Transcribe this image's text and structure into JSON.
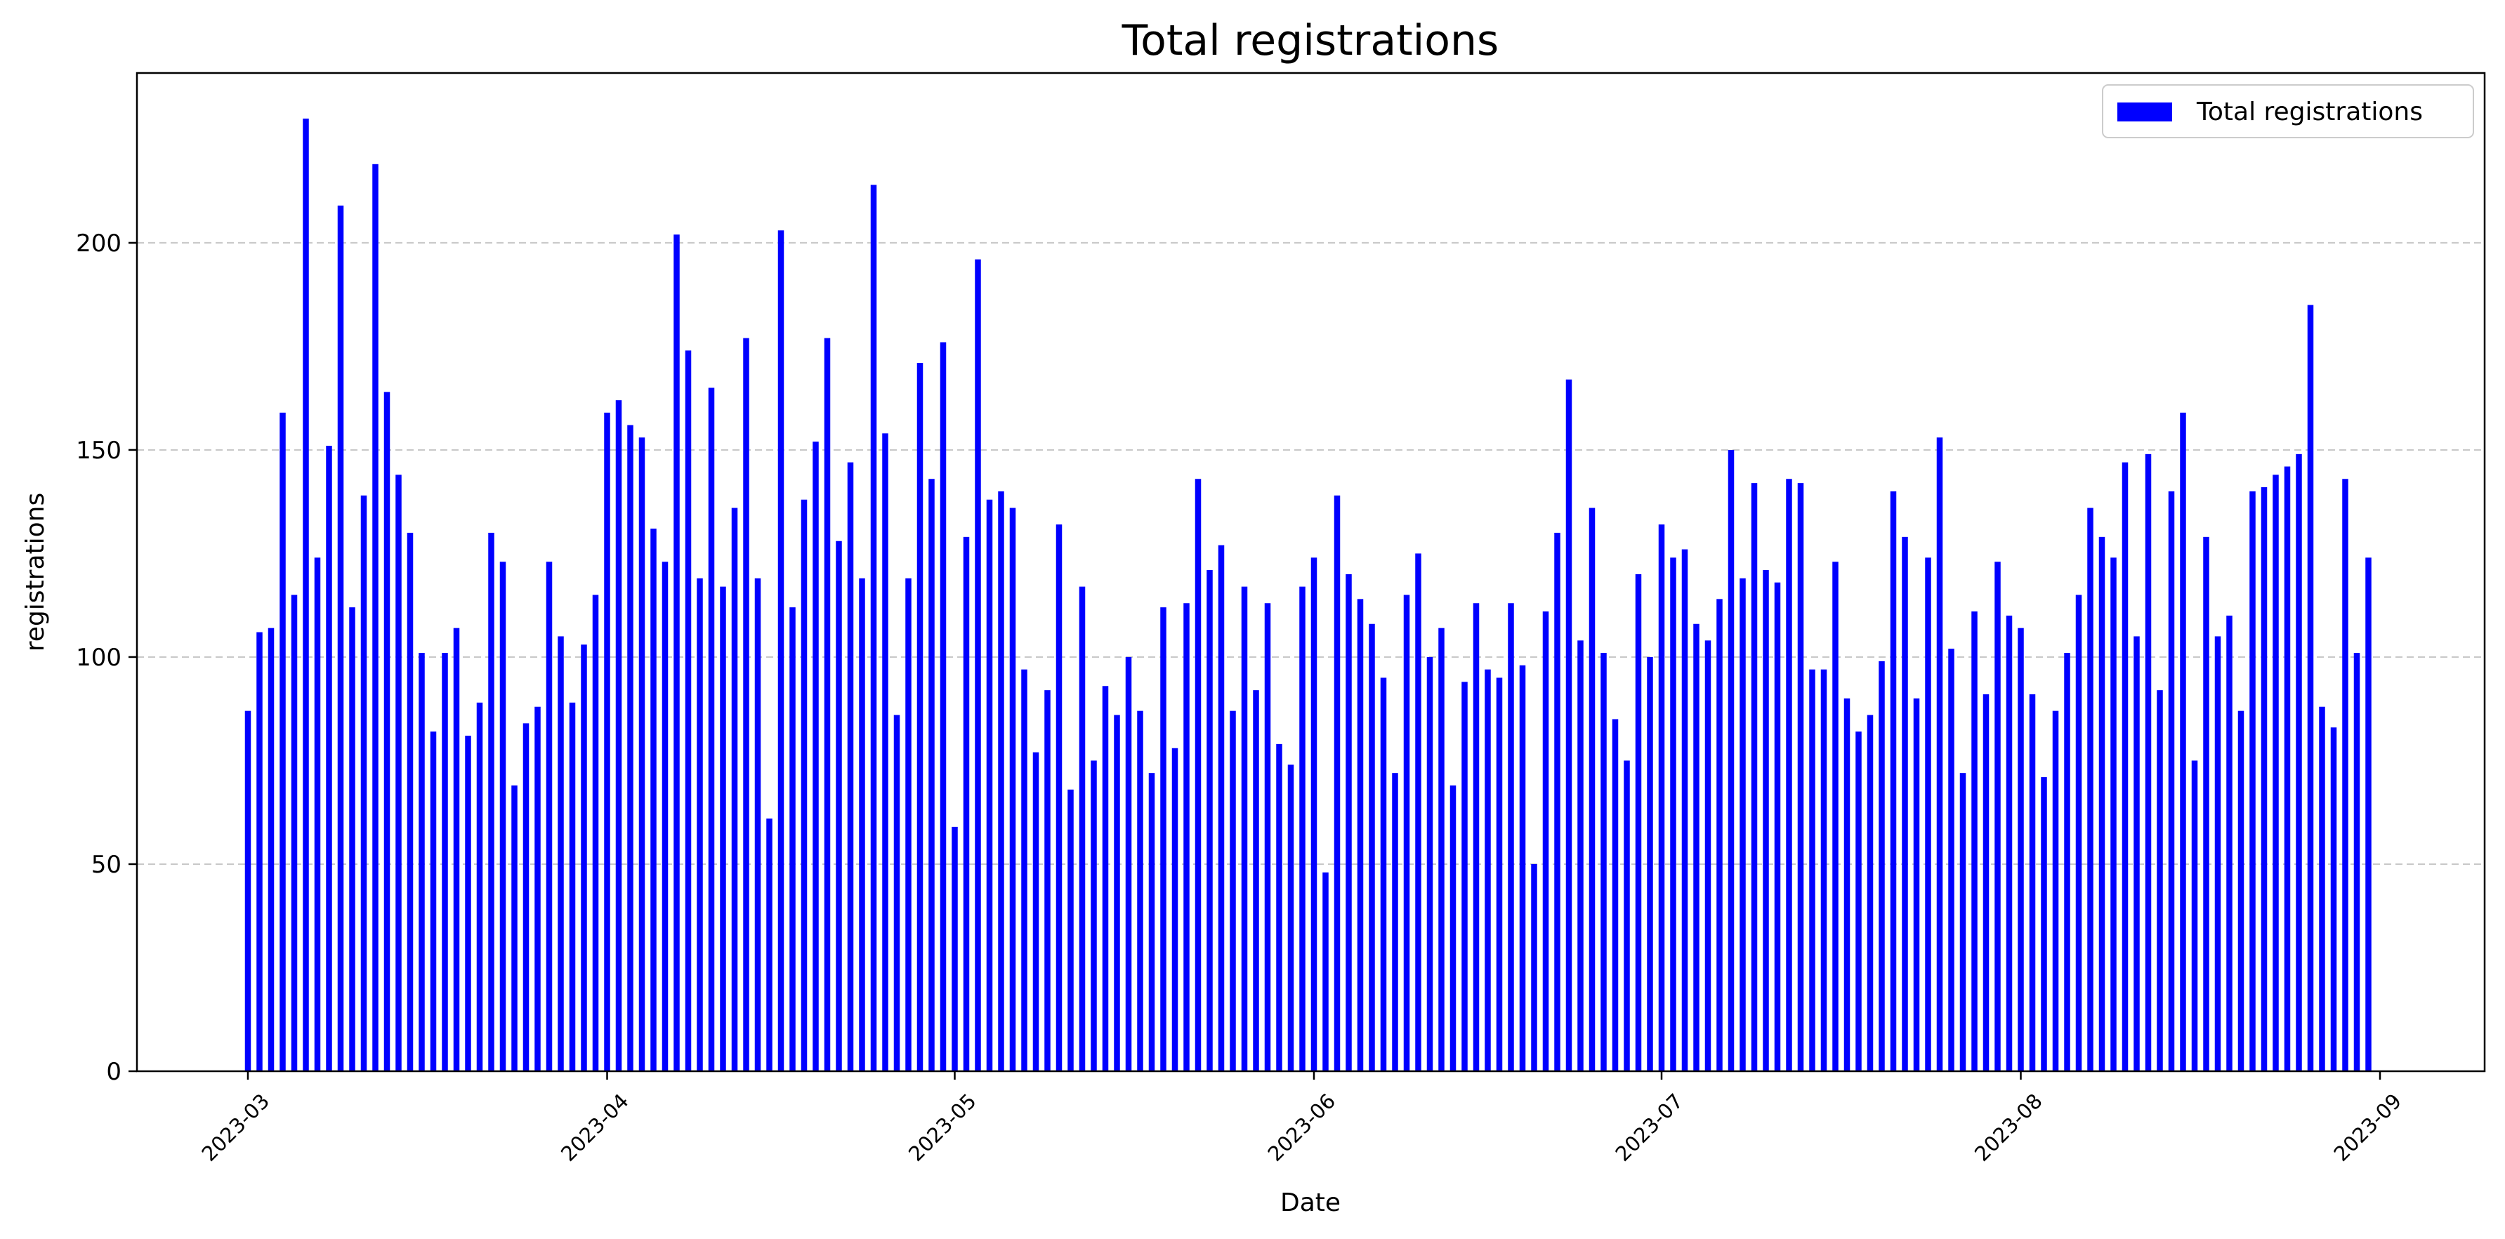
{
  "chart_data": {
    "type": "bar",
    "title": "Total registrations",
    "xlabel": "Date",
    "ylabel": "registrations",
    "start_date": "2023-03-01",
    "series": [
      {
        "name": "Total registrations",
        "color": "#0000ff",
        "values": [
          87,
          106,
          107,
          159,
          115,
          230,
          124,
          151,
          209,
          112,
          139,
          219,
          164,
          144,
          130,
          101,
          82,
          101,
          107,
          81,
          89,
          130,
          123,
          69,
          84,
          88,
          123,
          105,
          89,
          103,
          115,
          159,
          162,
          156,
          153,
          131,
          123,
          202,
          174,
          119,
          165,
          117,
          136,
          177,
          119,
          61,
          203,
          112,
          138,
          152,
          177,
          128,
          147,
          119,
          214,
          154,
          86,
          119,
          171,
          143,
          176,
          59,
          129,
          196,
          138,
          140,
          136,
          97,
          77,
          92,
          132,
          68,
          117,
          75,
          93,
          86,
          100,
          87,
          72,
          112,
          78,
          113,
          143,
          121,
          127,
          87,
          117,
          92,
          113,
          79,
          74,
          117,
          124,
          48,
          139,
          120,
          114,
          108,
          95,
          72,
          115,
          125,
          100,
          107,
          69,
          94,
          113,
          97,
          95,
          113,
          98,
          50,
          111,
          130,
          167,
          104,
          136,
          101,
          85,
          75,
          120,
          100,
          132,
          124,
          126,
          108,
          104,
          114,
          150,
          119,
          142,
          121,
          118,
          143,
          142,
          97,
          97,
          123,
          90,
          82,
          86,
          99,
          140,
          129,
          90,
          124,
          153,
          102,
          72,
          111,
          91,
          123,
          110,
          107,
          91,
          71,
          87,
          101,
          115,
          136,
          129,
          124,
          147,
          105,
          149,
          92,
          140,
          159,
          75,
          129,
          105,
          110,
          87,
          140,
          141,
          144,
          146,
          149,
          185,
          88,
          83,
          143,
          101,
          124
        ]
      }
    ],
    "ylim": [
      0,
      241
    ],
    "yticks": [
      0,
      50,
      100,
      150,
      200
    ],
    "xticks": [
      "2023-03",
      "2023-04",
      "2023-05",
      "2023-06",
      "2023-07",
      "2023-08",
      "2023-09"
    ],
    "grid": "y dashed",
    "legend": "upper-right"
  }
}
